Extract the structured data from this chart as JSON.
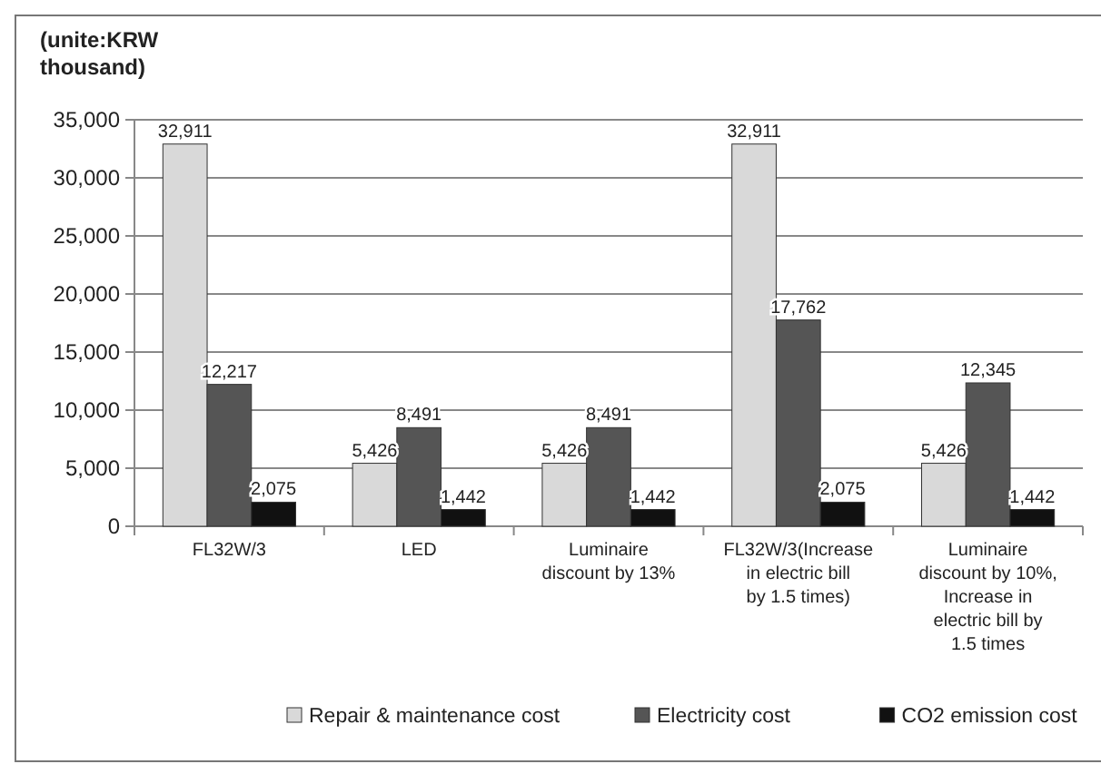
{
  "chart_data": {
    "type": "bar",
    "ylabel": "(unite:KRW thousand)",
    "categories": [
      "FL32W/3",
      "LED",
      "Luminaire discount by 13%",
      "FL32W/3(Increase in electric bill by 1.5 times)",
      "Luminaire discount by 10%, Increase in electric bill by 1.5 times"
    ],
    "series": [
      {
        "name": "Repair & maintenance cost",
        "color": "#d9d9d9",
        "values": [
          32911,
          5426,
          5426,
          32911,
          5426
        ],
        "value_labels": [
          "32,911",
          "5,426",
          "5,426",
          "32,911",
          "5,426"
        ]
      },
      {
        "name": "Electricity cost",
        "color": "#555555",
        "values": [
          12217,
          8491,
          8491,
          17762,
          12345
        ],
        "value_labels": [
          "12,217",
          "8,491",
          "8,491",
          "17,762",
          "12,345"
        ]
      },
      {
        "name": "CO2 emission cost",
        "color": "#111111",
        "values": [
          2075,
          1442,
          1442,
          2075,
          1442
        ],
        "value_labels": [
          "2,075",
          "1,442",
          "1,442",
          "2,075",
          "1,442"
        ]
      }
    ],
    "ylim": [
      0,
      35000
    ],
    "yticks": [
      {
        "value": 0,
        "label": "0"
      },
      {
        "value": 5000,
        "label": "5,000"
      },
      {
        "value": 10000,
        "label": "10,000"
      },
      {
        "value": 15000,
        "label": "15,000"
      },
      {
        "value": 20000,
        "label": "20,000"
      },
      {
        "value": 25000,
        "label": "25,000"
      },
      {
        "value": 30000,
        "label": "30,000"
      },
      {
        "value": 35000,
        "label": "35,000"
      }
    ],
    "grid": "y",
    "legend": "bottom"
  }
}
